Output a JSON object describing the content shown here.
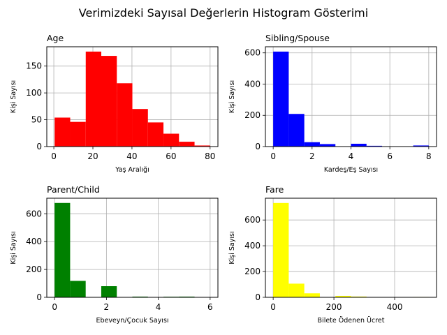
{
  "figure": {
    "title": "Verimizdeki Sayısal Değerlerin Histogram Gösterimi"
  },
  "chart_data": [
    {
      "type": "bar",
      "title": "Age",
      "xlabel": "Yaş Aralığı",
      "ylabel": "Kişi Sayısı",
      "bin_edges": [
        0.42,
        8.38,
        16.34,
        24.29,
        32.25,
        40.21,
        48.17,
        56.13,
        64.08,
        72.04,
        80.0
      ],
      "values": [
        54,
        46,
        177,
        169,
        118,
        70,
        45,
        24,
        9,
        2
      ],
      "xlim": [
        -3.6,
        84.0
      ],
      "ylim": [
        0,
        186
      ],
      "xticks": [
        0,
        20,
        40,
        60,
        80
      ],
      "yticks": [
        0,
        50,
        100,
        150
      ],
      "color": "#ff0000",
      "grid": true
    },
    {
      "type": "bar",
      "title": "Sibling/Spouse",
      "xlabel": "Kardeş/Eş Sayısı",
      "ylabel": "Kişi Sayısı",
      "bin_edges": [
        0,
        0.8,
        1.6,
        2.4,
        3.2,
        4.0,
        4.8,
        5.6,
        6.4,
        7.2,
        8.0
      ],
      "values": [
        608,
        209,
        28,
        16,
        0,
        18,
        5,
        0,
        0,
        7
      ],
      "xlim": [
        -0.4,
        8.4
      ],
      "ylim": [
        0,
        639
      ],
      "xticks": [
        0,
        2,
        4,
        6,
        8
      ],
      "yticks": [
        0,
        200,
        400,
        600
      ],
      "color": "#0000ff",
      "grid": true
    },
    {
      "type": "bar",
      "title": "Parent/Child",
      "xlabel": "Ebeveyn/Çocuk Sayısı",
      "ylabel": "Kişi Sayısı",
      "bin_edges": [
        0,
        0.6,
        1.2,
        1.8,
        2.4,
        3.0,
        3.6,
        4.2,
        4.8,
        5.4,
        6.0
      ],
      "values": [
        678,
        118,
        0,
        80,
        0,
        5,
        0,
        4,
        5,
        1
      ],
      "xlim": [
        -0.3,
        6.3
      ],
      "ylim": [
        0,
        712
      ],
      "xticks": [
        0,
        2,
        4,
        6
      ],
      "yticks": [
        0,
        200,
        400,
        600
      ],
      "color": "#008000",
      "grid": true
    },
    {
      "type": "bar",
      "title": "Fare",
      "xlabel": "Bilete Ödenen Ücret",
      "ylabel": "Kişi Sayısı",
      "bin_edges": [
        0,
        51.23,
        102.47,
        153.7,
        204.93,
        256.17,
        307.4,
        358.63,
        409.86,
        461.1,
        512.33
      ],
      "values": [
        732,
        106,
        31,
        2,
        11,
        6,
        0,
        0,
        0,
        3
      ],
      "xlim": [
        -25.6,
        537.9
      ],
      "ylim": [
        0,
        769
      ],
      "xticks": [
        0,
        200,
        400
      ],
      "yticks": [
        0,
        200,
        400,
        600
      ],
      "color": "#ffff00",
      "grid": true
    }
  ]
}
